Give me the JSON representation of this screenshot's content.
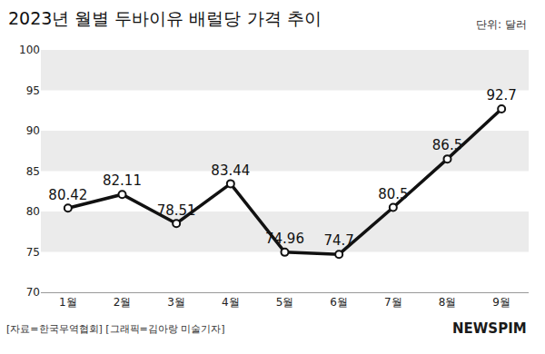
{
  "chart_data": {
    "type": "line",
    "title": "2023년 월별 두바이유 배럴당 가격 추이",
    "categories": [
      "1월",
      "2월",
      "3월",
      "4월",
      "5월",
      "6월",
      "7월",
      "8월",
      "9월"
    ],
    "values": [
      80.42,
      82.11,
      78.51,
      83.44,
      74.96,
      74.7,
      80.5,
      86.5,
      92.7
    ],
    "color": "#111111",
    "marker": "circle",
    "ylim": [
      70,
      100
    ],
    "yticks": [
      70,
      75,
      80,
      85,
      90,
      95,
      100
    ],
    "grid": true,
    "data_labels": true,
    "annotations": [
      "단위: 달러",
      "[자료=한국무역협회] [그래픽=김아랑 미술기자]",
      "NEWSPIM"
    ]
  }
}
